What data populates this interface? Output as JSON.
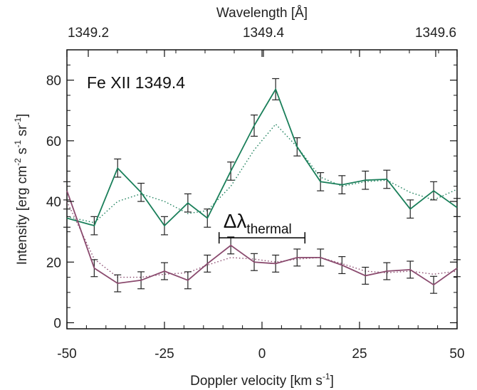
{
  "chart_data": {
    "type": "line",
    "annotation": "Fe XII 1349.4",
    "xlabel": "Doppler velocity [km s",
    "xlabel_sup": "-1",
    "xlabel_close": "]",
    "top_xlabel": "Wavelength [Å]",
    "ylabel_parts": [
      "Intensity [erg cm",
      "-2",
      " s",
      "-1",
      " sr",
      "-1",
      "]"
    ],
    "xlim": [
      -50,
      50
    ],
    "ylim": [
      -2,
      90
    ],
    "x_ticks": [
      "-50",
      "-25",
      "0",
      "25",
      "50"
    ],
    "y_ticks": [
      "0",
      "20",
      "40",
      "60",
      "80"
    ],
    "top_ticks": [
      "1349.2",
      "1349.4",
      "1349.6"
    ],
    "thermal_label": "Δλ",
    "thermal_label_sub": "thermal",
    "thermal_range": [
      -11,
      11
    ],
    "thermal_y": 28,
    "colors": {
      "series1": "#1a7f5a",
      "series2": "#8a4a6e",
      "errorbar": "#222222"
    },
    "series": [
      {
        "x": [
          -50,
          -43,
          -37,
          -31,
          -25,
          -19,
          -14,
          -8,
          -2,
          3.5,
          9,
          15,
          20.5,
          26.5,
          32,
          38,
          44,
          50
        ],
        "values": [
          34.5,
          32,
          51,
          43,
          32,
          39.5,
          34.5,
          50,
          65,
          77,
          58,
          46.5,
          45.5,
          47,
          47.3,
          37.5,
          43.5,
          38
        ],
        "errors": [
          3,
          3,
          3,
          3,
          3,
          3,
          3,
          3,
          3.5,
          3.5,
          3,
          3,
          3,
          3,
          3,
          3,
          3,
          3
        ],
        "fit_values": [
          35,
          33,
          40,
          42.5,
          40,
          36,
          37,
          45,
          57,
          65.5,
          58,
          48,
          45,
          46.5,
          47,
          43,
          40.5,
          44
        ]
      },
      {
        "x": [
          -50,
          -43,
          -37,
          -31,
          -25,
          -19,
          -14,
          -8,
          -2,
          3.5,
          9,
          15,
          20.5,
          26.5,
          32,
          38,
          44,
          50
        ],
        "values": [
          43.5,
          18,
          13,
          14,
          17,
          14,
          19.5,
          25.5,
          20,
          19.5,
          21.5,
          21.5,
          19,
          15.5,
          17,
          17.5,
          12.5,
          18
        ],
        "errors": [
          3,
          2.8,
          2.8,
          2.8,
          2.8,
          2.8,
          2.8,
          2.8,
          2.8,
          2.8,
          2.8,
          2.8,
          2.8,
          2.8,
          2.8,
          2.8,
          2.8,
          2.8
        ],
        "fit_values": [
          40,
          21,
          15,
          15,
          16,
          16.5,
          19,
          21.5,
          21,
          20,
          21,
          21.5,
          19.5,
          17,
          16.5,
          17,
          16,
          17
        ]
      }
    ]
  }
}
